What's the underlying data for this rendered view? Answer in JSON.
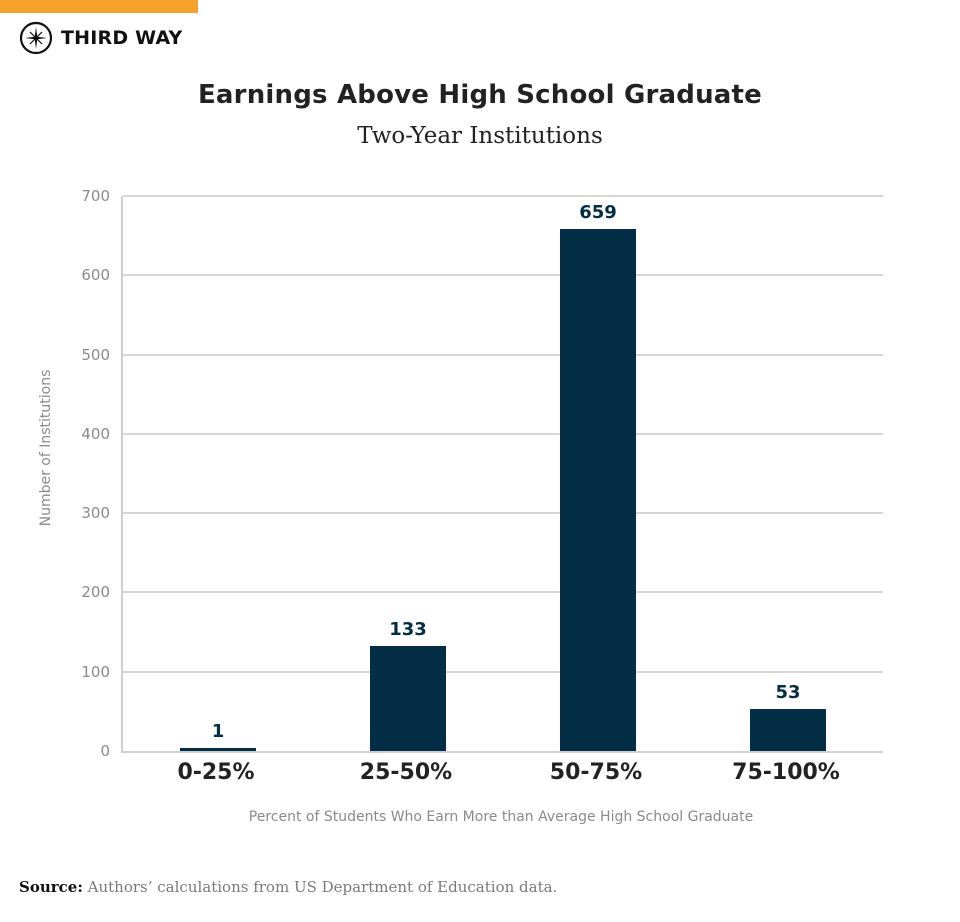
{
  "brand": {
    "name": "THIRD WAY",
    "accent_color": "#f7a12d",
    "icon": "compass-icon"
  },
  "header": {
    "title": "Earnings Above High School Graduate",
    "subtitle": "Two-Year Institutions"
  },
  "axes": {
    "ylabel": "Number of Institutions",
    "xlabel": "Percent of Students Who Earn More than Average High School Graduate",
    "yticks": [
      "0",
      "100",
      "200",
      "300",
      "400",
      "500",
      "600",
      "700"
    ],
    "xticks": [
      "0-25%",
      "25-50%",
      "50-75%",
      "75-100%"
    ]
  },
  "bars": [
    {
      "category": "0-25%",
      "value": 1,
      "label": "1"
    },
    {
      "category": "25-50%",
      "value": 133,
      "label": "133"
    },
    {
      "category": "50-75%",
      "value": 659,
      "label": "659"
    },
    {
      "category": "75-100%",
      "value": 53,
      "label": "53"
    }
  ],
  "footer": {
    "source_label": "Source:",
    "source_text": "Authors’ calculations from US Department of Education data."
  },
  "colors": {
    "bar": "#042d46",
    "grid": "#d6d6d6",
    "accent": "#f7a12d"
  },
  "chart_data": {
    "type": "bar",
    "title": "Earnings Above High School Graduate",
    "subtitle": "Two-Year Institutions",
    "categories": [
      "0-25%",
      "25-50%",
      "50-75%",
      "75-100%"
    ],
    "values": [
      1,
      133,
      659,
      53
    ],
    "xlabel": "Percent of Students Who Earn More than Average High School Graduate",
    "ylabel": "Number of Institutions",
    "ylim": [
      0,
      700
    ],
    "yticks": [
      0,
      100,
      200,
      300,
      400,
      500,
      600,
      700
    ],
    "grid": true,
    "data_labels": true,
    "legend": null,
    "source": "Source: Authors’ calculations from US Department of Education data."
  }
}
